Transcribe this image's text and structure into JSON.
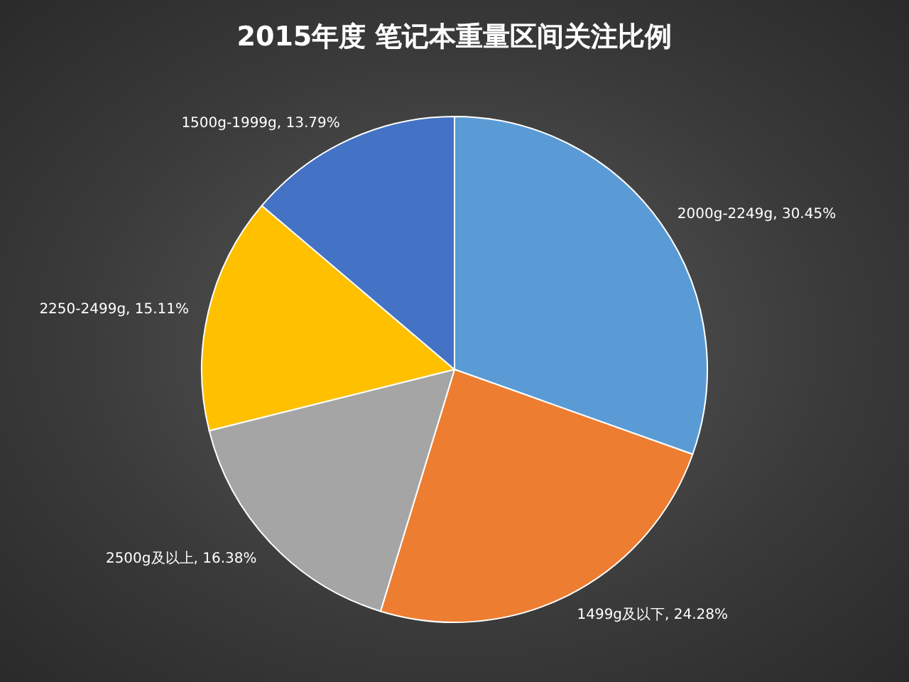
{
  "chart_data": {
    "type": "pie",
    "title": "2015年度 笔记本重量区间关注比例",
    "categories": [
      "2000g-2249g",
      "1499g及以下",
      "2500g及以上",
      "2250-2499g",
      "1500g-1999g"
    ],
    "values": [
      30.45,
      24.28,
      16.38,
      15.11,
      13.79
    ],
    "value_labels": [
      "30.45%",
      "24.28%",
      "16.38%",
      "15.11%",
      "13.79%"
    ],
    "colors": [
      "#5b9bd5",
      "#ed7d31",
      "#a5a5a5",
      "#ffc000",
      "#4472c4"
    ],
    "legend": false
  }
}
